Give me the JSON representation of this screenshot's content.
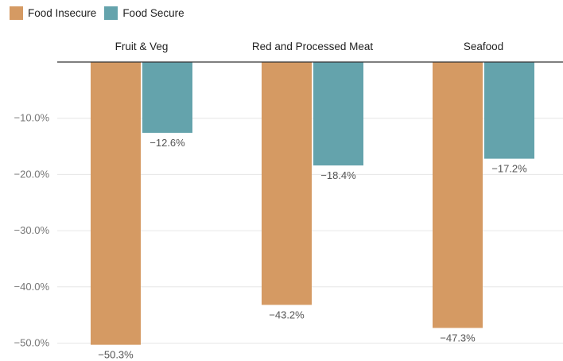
{
  "chart_data": {
    "type": "bar",
    "categories": [
      "Fruit & Veg",
      "Red and Processed Meat",
      "Seafood"
    ],
    "series": [
      {
        "name": "Food Insecure",
        "color": "#d59a63",
        "values": [
          -50.3,
          -43.2,
          -47.3
        ],
        "labels": [
          "−50.3%",
          "−43.2%",
          "−47.3%"
        ]
      },
      {
        "name": "Food Secure",
        "color": "#64a3ac",
        "values": [
          -12.6,
          -18.4,
          -17.2
        ],
        "labels": [
          "−12.6%",
          "−18.4%",
          "−17.2%"
        ]
      }
    ],
    "ylim": [
      -50,
      0
    ],
    "yticks": [
      -10,
      -20,
      -30,
      -40,
      -50
    ],
    "ytick_labels": [
      "−10.0%",
      "−20.0%",
      "−30.0%",
      "−40.0%",
      "−50.0%"
    ],
    "grid": true,
    "legend_position": "top-left",
    "category_label_position": "top"
  }
}
